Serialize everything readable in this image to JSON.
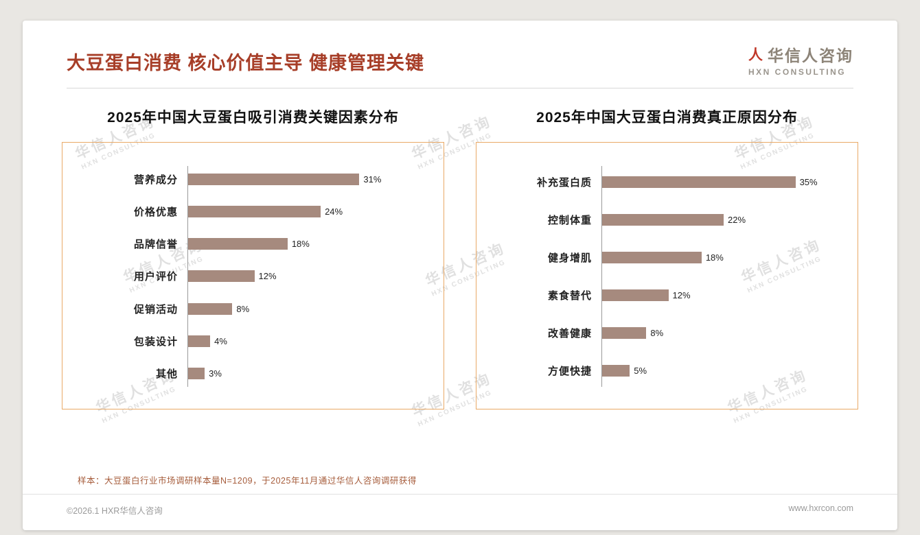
{
  "page": {
    "title": "大豆蛋白消费 核心价值主导 健康管理关键",
    "logo": {
      "icon": "人",
      "name": "华信人咨询",
      "sub": "HXN CONSULTING"
    },
    "watermark": {
      "line1": "华信人咨询",
      "line2": "HXN CONSULTING"
    },
    "note": "样本：大豆蛋白行业市场调研样本量N=1209，于2025年11月通过华信人咨询调研获得",
    "footer": {
      "left": "©2026.1 HXR华信人咨询",
      "right": "www.hxrcon.com"
    }
  },
  "colors": {
    "accent": "#a73e28",
    "bar": "#a68a7e",
    "chart_border": "#e9a966",
    "note": "#a65c3b"
  },
  "chart_data": [
    {
      "type": "bar",
      "orientation": "horizontal",
      "title": "2025年中国大豆蛋白吸引消费关键因素分布",
      "categories": [
        "营养成分",
        "价格优惠",
        "品牌信誉",
        "用户评价",
        "促销活动",
        "包装设计",
        "其他"
      ],
      "values": [
        31,
        24,
        18,
        12,
        8,
        4,
        3
      ],
      "unit": "%",
      "xlim": [
        0,
        40
      ],
      "grid": false,
      "legend": false,
      "xlabel": "",
      "ylabel": ""
    },
    {
      "type": "bar",
      "orientation": "horizontal",
      "title": "2025年中国大豆蛋白消费真正原因分布",
      "categories": [
        "补充蛋白质",
        "控制体重",
        "健身增肌",
        "素食替代",
        "改善健康",
        "方便快捷"
      ],
      "values": [
        35,
        22,
        18,
        12,
        8,
        5
      ],
      "unit": "%",
      "xlim": [
        0,
        40
      ],
      "grid": false,
      "legend": false,
      "xlabel": "",
      "ylabel": ""
    }
  ]
}
